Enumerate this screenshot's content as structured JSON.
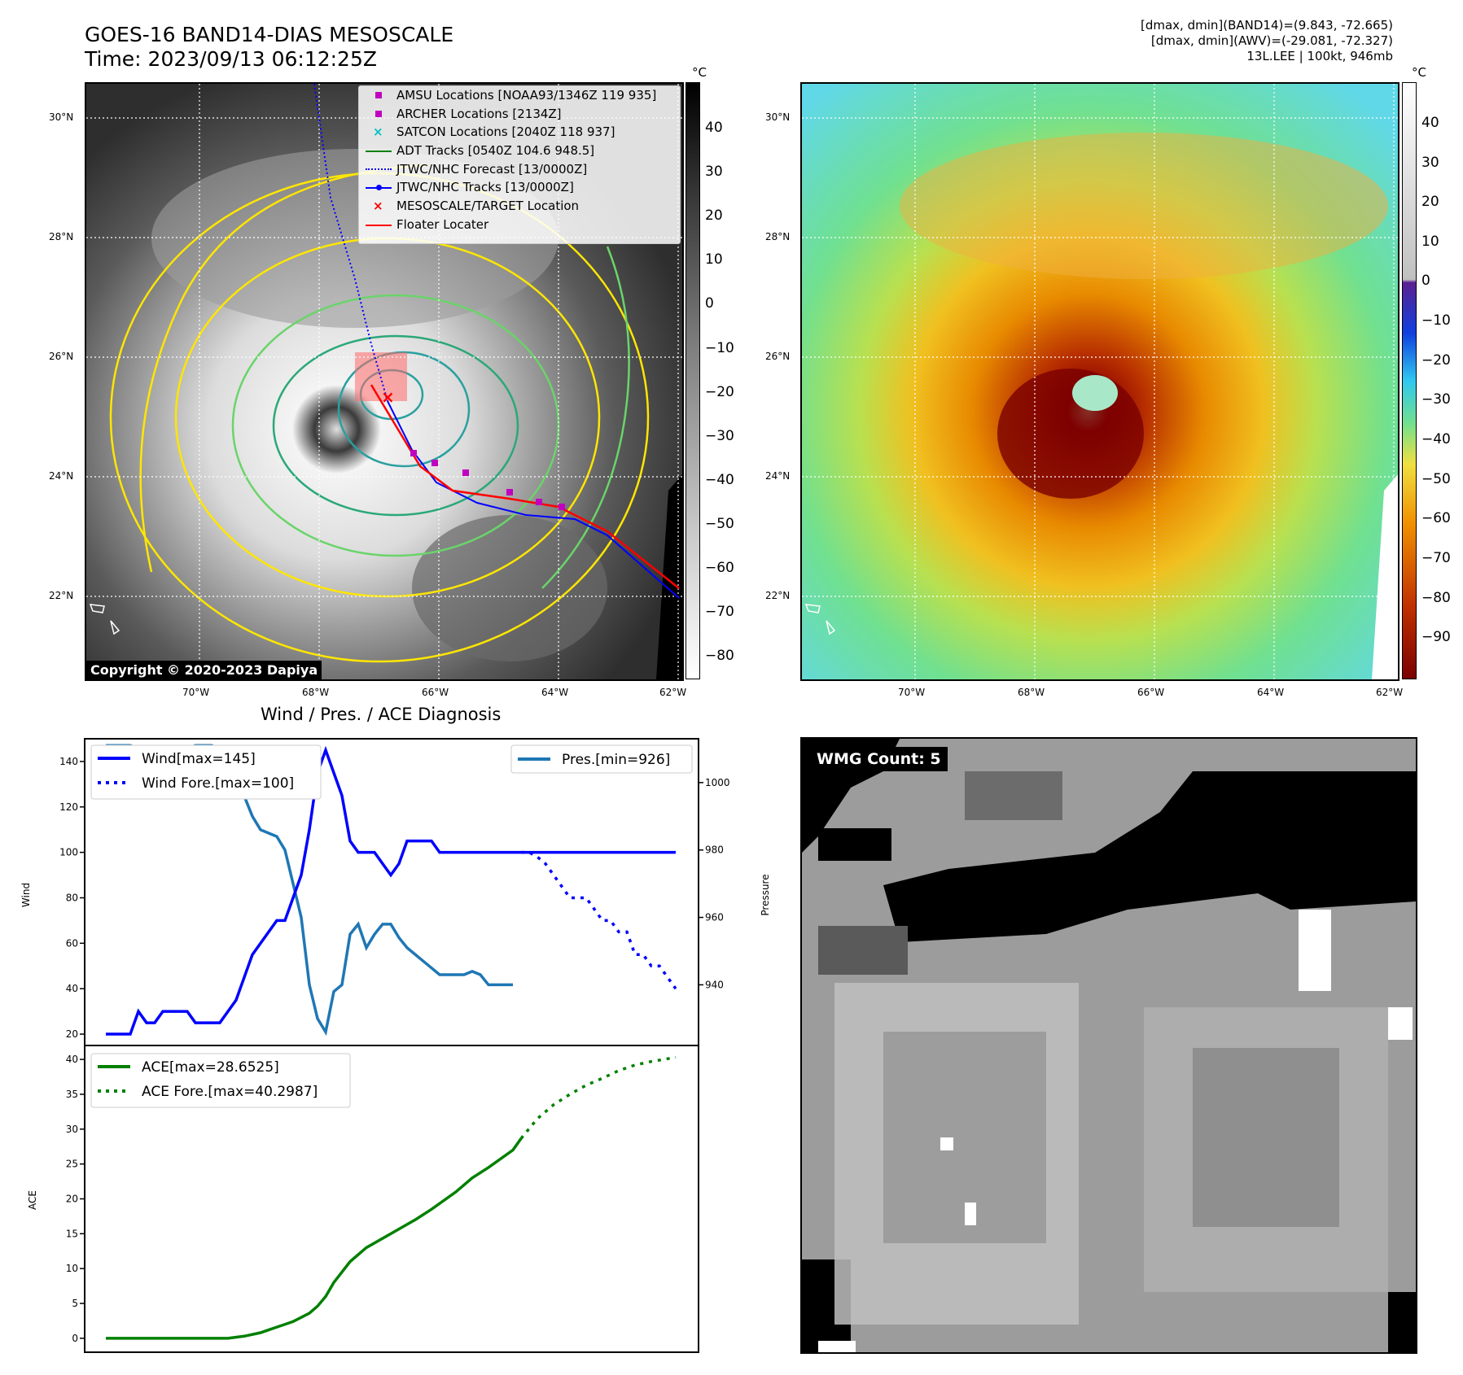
{
  "header": {
    "title": "GOES-16 BAND14-DIAS MESOSCALE",
    "time": "Time: 2023/09/13 06:12:25Z",
    "stat_band14": "[dmax, dmin](BAND14)=(9.843, -72.665)",
    "stat_awv": "[dmax, dmin](AWV)=(-29.081, -72.327)",
    "storm": "13L.LEE | 100kt, 946mb"
  },
  "unit": "°C",
  "map_ticks": {
    "lat": [
      "30°N",
      "28°N",
      "26°N",
      "24°N",
      "22°N"
    ],
    "lon": [
      "70°W",
      "68°W",
      "66°W",
      "64°W",
      "62°W"
    ]
  },
  "panel1": {
    "copyright": "Copyright © 2020-2023 Dapiya",
    "colorbar_ticks": [
      "40",
      "30",
      "20",
      "10",
      "0",
      "−10",
      "−20",
      "−30",
      "−40",
      "−50",
      "−60",
      "−70",
      "−80"
    ],
    "legend": [
      {
        "label": "AMSU Locations [NOAA93/1346Z 119 935]",
        "color": "#c000c0"
      },
      {
        "label": "ARCHER Locations [2134Z]",
        "color": "#c000c0"
      },
      {
        "label": "SATCON Locations [2040Z 118 937]",
        "color": "#00c0c0"
      },
      {
        "label": "ADT Tracks [0540Z 104.6 948.5]",
        "color": "#008000"
      },
      {
        "label": "JTWC/NHC Forecast [13/0000Z]",
        "color": "#0000ff"
      },
      {
        "label": "JTWC/NHC Tracks [13/0000Z]",
        "color": "#0000ff"
      },
      {
        "label": "MESOSCALE/TARGET Location",
        "color": "#ff0000"
      },
      {
        "label": "Floater Locater",
        "color": "#ff0000"
      }
    ]
  },
  "panel2": {
    "colorbar_ticks": [
      "40",
      "30",
      "20",
      "10",
      "0",
      "−10",
      "−20",
      "−30",
      "−40",
      "−50",
      "−60",
      "−70",
      "−80",
      "−90"
    ]
  },
  "panel4": {
    "wmg_label": "WMG Count: 5"
  },
  "chart_data": [
    {
      "type": "line",
      "title": "Wind / Pres. / ACE Diagnosis",
      "ylabel": "Wind",
      "ylabel_right": "Pressure",
      "ylim": [
        15,
        150
      ],
      "ylim_right": [
        922,
        1013
      ],
      "yticks": [
        20,
        40,
        60,
        80,
        100,
        120,
        140
      ],
      "yticks_right": [
        940,
        960,
        980,
        1000
      ],
      "series": [
        {
          "name": "Wind[max=145]",
          "axis": "left",
          "color": "#0000ff",
          "x": [
            0,
            2,
            3,
            4,
            5,
            6,
            7,
            8,
            9,
            10,
            11,
            12,
            13,
            14,
            15,
            16,
            17,
            18,
            19,
            20,
            21,
            22,
            23,
            24,
            25,
            26,
            27,
            28,
            29,
            30,
            31,
            32,
            33,
            34,
            35,
            36,
            37,
            38,
            39,
            40,
            41,
            42,
            43,
            44,
            45,
            46,
            47,
            48,
            49,
            50,
            51,
            52,
            53,
            54,
            55,
            56,
            57,
            58,
            59,
            60,
            61,
            62,
            63,
            64,
            65,
            66,
            67,
            68,
            69,
            70
          ],
          "values": [
            20,
            20,
            20,
            30,
            25,
            25,
            30,
            30,
            30,
            30,
            25,
            25,
            25,
            25,
            30,
            35,
            45,
            55,
            60,
            65,
            70,
            70,
            80,
            90,
            110,
            135,
            145,
            135,
            125,
            105,
            100,
            100,
            100,
            95,
            90,
            95,
            105,
            105,
            105,
            105,
            100,
            100,
            100,
            100,
            100,
            100,
            100,
            100,
            100,
            100,
            100,
            100,
            100,
            100,
            100,
            100,
            100,
            100,
            100,
            100,
            100,
            100,
            100,
            100,
            100,
            100,
            100,
            100,
            100,
            100
          ]
        },
        {
          "name": "Wind Fore.[max=100]",
          "axis": "left",
          "color": "#0000ff",
          "dashed": true,
          "x": [
            51,
            52,
            53,
            54,
            55,
            56,
            57,
            58,
            59,
            60,
            61,
            62,
            63,
            64,
            65,
            66,
            67,
            68,
            69,
            70
          ],
          "values": [
            100,
            100,
            98,
            95,
            90,
            85,
            80,
            80,
            80,
            75,
            70,
            70,
            65,
            65,
            55,
            55,
            50,
            50,
            45,
            40
          ]
        },
        {
          "name": "Pres.[min=926]",
          "axis": "right",
          "color": "#1f77b4",
          "x": [
            0,
            2,
            3,
            4,
            5,
            6,
            7,
            8,
            9,
            10,
            11,
            12,
            13,
            14,
            15,
            16,
            17,
            18,
            19,
            20,
            21,
            22,
            23,
            24,
            25,
            26,
            27,
            28,
            29,
            30,
            31,
            32,
            33,
            34,
            35,
            36,
            37,
            38,
            39,
            40,
            41,
            42,
            43,
            44,
            45,
            46,
            47,
            48,
            49,
            50
          ],
          "values": [
            1011,
            1011,
            1011,
            1010,
            1010,
            1010,
            1010,
            1010,
            1010,
            1010,
            1011,
            1011,
            1011,
            1010,
            1008,
            1002,
            996,
            990,
            986,
            985,
            984,
            980,
            970,
            960,
            940,
            930,
            926,
            938,
            940,
            955,
            958,
            951,
            955,
            958,
            958,
            954,
            951,
            949,
            947,
            945,
            943,
            943,
            943,
            943,
            944,
            943,
            940,
            940,
            940,
            940
          ]
        }
      ]
    },
    {
      "type": "line",
      "ylabel": "ACE",
      "ylim": [
        -2,
        42
      ],
      "yticks": [
        0,
        5,
        10,
        15,
        20,
        25,
        30,
        35,
        40
      ],
      "series": [
        {
          "name": "ACE[max=28.6525]",
          "color": "#008000",
          "x": [
            0,
            5,
            10,
            15,
            17,
            19,
            20,
            21,
            22,
            23,
            24,
            25,
            26,
            27,
            28,
            30,
            32,
            35,
            38,
            40,
            43,
            45,
            47,
            50,
            51
          ],
          "values": [
            0,
            0,
            0,
            0,
            0.3,
            0.8,
            1.2,
            1.6,
            2.0,
            2.4,
            3.0,
            3.6,
            4.6,
            6.0,
            8.0,
            11.0,
            13.0,
            15.0,
            17.0,
            18.5,
            21.0,
            23.0,
            24.5,
            27.0,
            28.65
          ]
        },
        {
          "name": "ACE Fore.[max=40.2987]",
          "color": "#008000",
          "dashed": true,
          "x": [
            51,
            53,
            55,
            57,
            59,
            61,
            63,
            65,
            67,
            70
          ],
          "values": [
            28.65,
            31.5,
            33.5,
            35.0,
            36.3,
            37.3,
            38.4,
            39.2,
            39.7,
            40.3
          ]
        }
      ]
    }
  ]
}
